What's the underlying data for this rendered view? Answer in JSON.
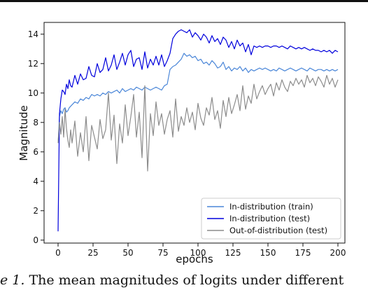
{
  "caption": {
    "fig_label": "e 1.",
    "text": " The mean magnitudes of logits under different"
  },
  "chart_data": {
    "type": "line",
    "xlabel": "epochs",
    "ylabel": "Magnitude",
    "xlim": [
      -10,
      205
    ],
    "ylim": [
      -0.2,
      14.8
    ],
    "xticks": [
      0,
      25,
      50,
      75,
      100,
      125,
      150,
      175,
      200
    ],
    "yticks": [
      0,
      2,
      4,
      6,
      8,
      10,
      12,
      14
    ],
    "legend_position": "lower-right",
    "grid": false,
    "series": [
      {
        "name": "In-distribution (train)",
        "color": "#4a86d8",
        "x": [
          0,
          1,
          2,
          3,
          4,
          5,
          6,
          7,
          8,
          9,
          10,
          12,
          14,
          16,
          18,
          20,
          22,
          24,
          26,
          28,
          30,
          32,
          34,
          36,
          38,
          40,
          42,
          44,
          46,
          48,
          50,
          52,
          54,
          56,
          58,
          60,
          62,
          64,
          66,
          68,
          70,
          72,
          74,
          76,
          78,
          80,
          82,
          84,
          86,
          88,
          90,
          92,
          94,
          96,
          98,
          100,
          102,
          104,
          106,
          108,
          110,
          112,
          114,
          116,
          118,
          120,
          122,
          124,
          126,
          128,
          130,
          132,
          134,
          136,
          138,
          140,
          142,
          144,
          146,
          148,
          150,
          152,
          154,
          156,
          158,
          160,
          162,
          164,
          166,
          168,
          170,
          172,
          174,
          176,
          178,
          180,
          182,
          184,
          186,
          188,
          190,
          192,
          194,
          196,
          198,
          200
        ],
        "values": [
          6.6,
          8.4,
          8.8,
          8.6,
          8.9,
          9.0,
          8.7,
          8.8,
          9.0,
          9.1,
          9.2,
          9.4,
          9.3,
          9.6,
          9.5,
          9.7,
          9.6,
          9.9,
          9.8,
          9.9,
          9.8,
          10.0,
          9.9,
          10.1,
          10.0,
          10.1,
          10.2,
          10.0,
          10.3,
          10.1,
          10.2,
          10.3,
          10.2,
          10.4,
          10.3,
          10.2,
          10.4,
          10.3,
          10.2,
          10.3,
          10.4,
          10.3,
          10.2,
          10.5,
          10.6,
          11.6,
          11.8,
          11.9,
          12.1,
          12.3,
          12.7,
          12.5,
          12.6,
          12.4,
          12.5,
          12.2,
          12.3,
          12.0,
          12.1,
          11.9,
          12.2,
          12.0,
          11.7,
          11.8,
          12.1,
          11.6,
          11.8,
          11.5,
          11.7,
          11.6,
          11.8,
          11.5,
          11.7,
          11.4,
          11.6,
          11.5,
          11.6,
          11.7,
          11.6,
          11.7,
          11.6,
          11.5,
          11.6,
          11.5,
          11.7,
          11.6,
          11.5,
          11.6,
          11.7,
          11.6,
          11.5,
          11.6,
          11.7,
          11.6,
          11.5,
          11.7,
          11.6,
          11.5,
          11.6,
          11.6,
          11.5,
          11.6,
          11.5,
          11.6,
          11.5,
          11.6
        ]
      },
      {
        "name": "In-distribution (test)",
        "color": "#0000dd",
        "x": [
          0,
          1,
          2,
          3,
          4,
          5,
          6,
          7,
          8,
          9,
          10,
          12,
          14,
          16,
          18,
          20,
          22,
          24,
          26,
          28,
          30,
          32,
          34,
          36,
          38,
          40,
          42,
          44,
          46,
          48,
          50,
          52,
          54,
          56,
          58,
          60,
          62,
          64,
          66,
          68,
          70,
          72,
          74,
          76,
          78,
          80,
          82,
          84,
          86,
          88,
          90,
          92,
          94,
          96,
          98,
          100,
          102,
          104,
          106,
          108,
          110,
          112,
          114,
          116,
          118,
          120,
          122,
          124,
          126,
          128,
          130,
          132,
          134,
          136,
          138,
          140,
          142,
          144,
          146,
          148,
          150,
          152,
          154,
          156,
          158,
          160,
          162,
          164,
          166,
          168,
          170,
          172,
          174,
          176,
          178,
          180,
          182,
          184,
          186,
          188,
          190,
          192,
          194,
          196,
          198,
          200
        ],
        "values": [
          0.6,
          8.6,
          9.6,
          10.2,
          10.1,
          9.9,
          10.6,
          10.3,
          10.9,
          10.5,
          10.4,
          11.2,
          10.6,
          11.3,
          10.9,
          11.0,
          11.8,
          11.2,
          11.1,
          12.0,
          11.4,
          11.6,
          12.4,
          11.5,
          11.9,
          12.6,
          11.6,
          12.1,
          12.7,
          11.9,
          12.6,
          12.9,
          11.8,
          12.3,
          12.4,
          11.6,
          12.8,
          11.7,
          12.3,
          11.9,
          12.5,
          11.9,
          12.6,
          11.8,
          12.2,
          12.7,
          13.7,
          14.0,
          14.2,
          14.3,
          14.2,
          14.1,
          14.3,
          13.8,
          14.1,
          13.9,
          13.6,
          14.0,
          13.8,
          13.4,
          13.9,
          13.5,
          13.7,
          13.3,
          13.8,
          13.6,
          13.1,
          13.5,
          13.0,
          13.6,
          13.2,
          13.4,
          12.8,
          13.3,
          12.6,
          13.2,
          13.1,
          13.2,
          13.1,
          13.2,
          13.2,
          13.1,
          13.2,
          13.2,
          13.1,
          13.2,
          13.1,
          13.0,
          13.2,
          13.1,
          13.0,
          13.1,
          13.0,
          13.1,
          13.0,
          12.9,
          13.0,
          12.9,
          12.9,
          12.8,
          12.9,
          12.8,
          12.9,
          12.7,
          12.9,
          12.8
        ]
      },
      {
        "name": "Out-of-distribution (test)",
        "color": "#8c8c8c",
        "x": [
          0,
          1,
          2,
          3,
          4,
          5,
          6,
          7,
          8,
          9,
          10,
          12,
          14,
          16,
          18,
          20,
          22,
          24,
          26,
          28,
          30,
          32,
          34,
          36,
          38,
          40,
          42,
          44,
          46,
          48,
          50,
          52,
          54,
          56,
          58,
          60,
          62,
          64,
          66,
          68,
          70,
          72,
          74,
          76,
          78,
          80,
          82,
          84,
          86,
          88,
          90,
          92,
          94,
          96,
          98,
          100,
          102,
          104,
          106,
          108,
          110,
          112,
          114,
          116,
          118,
          120,
          122,
          124,
          126,
          128,
          130,
          132,
          134,
          136,
          138,
          140,
          142,
          144,
          146,
          148,
          150,
          152,
          154,
          156,
          158,
          160,
          162,
          164,
          166,
          168,
          170,
          172,
          174,
          176,
          178,
          180,
          182,
          184,
          186,
          188,
          190,
          192,
          194,
          196,
          198,
          200
        ],
        "values": [
          6.6,
          8.0,
          7.2,
          8.4,
          7.0,
          8.9,
          7.6,
          6.8,
          6.3,
          7.5,
          6.6,
          8.1,
          5.7,
          7.3,
          6.0,
          8.4,
          5.4,
          7.8,
          7.0,
          6.2,
          8.2,
          6.9,
          7.5,
          10.0,
          6.8,
          8.5,
          5.2,
          7.9,
          6.6,
          9.2,
          7.1,
          8.4,
          9.9,
          7.0,
          8.7,
          5.6,
          10.5,
          4.7,
          8.6,
          7.1,
          9.4,
          7.8,
          8.6,
          7.2,
          8.2,
          8.8,
          7.0,
          9.6,
          7.4,
          8.4,
          7.8,
          9.0,
          8.0,
          8.7,
          7.5,
          9.3,
          8.3,
          7.8,
          9.0,
          8.5,
          9.7,
          8.2,
          8.8,
          7.6,
          9.5,
          8.4,
          9.7,
          8.6,
          9.2,
          9.9,
          8.8,
          10.5,
          8.9,
          9.8,
          9.3,
          10.6,
          9.6,
          10.1,
          10.5,
          9.9,
          10.3,
          10.6,
          9.8,
          10.7,
          10.2,
          10.9,
          10.4,
          10.1,
          10.8,
          10.5,
          11.0,
          10.6,
          10.9,
          10.4,
          11.2,
          10.7,
          11.0,
          10.5,
          11.1,
          10.8,
          10.4,
          11.2,
          10.6,
          11.0,
          10.4,
          10.9
        ]
      }
    ]
  }
}
